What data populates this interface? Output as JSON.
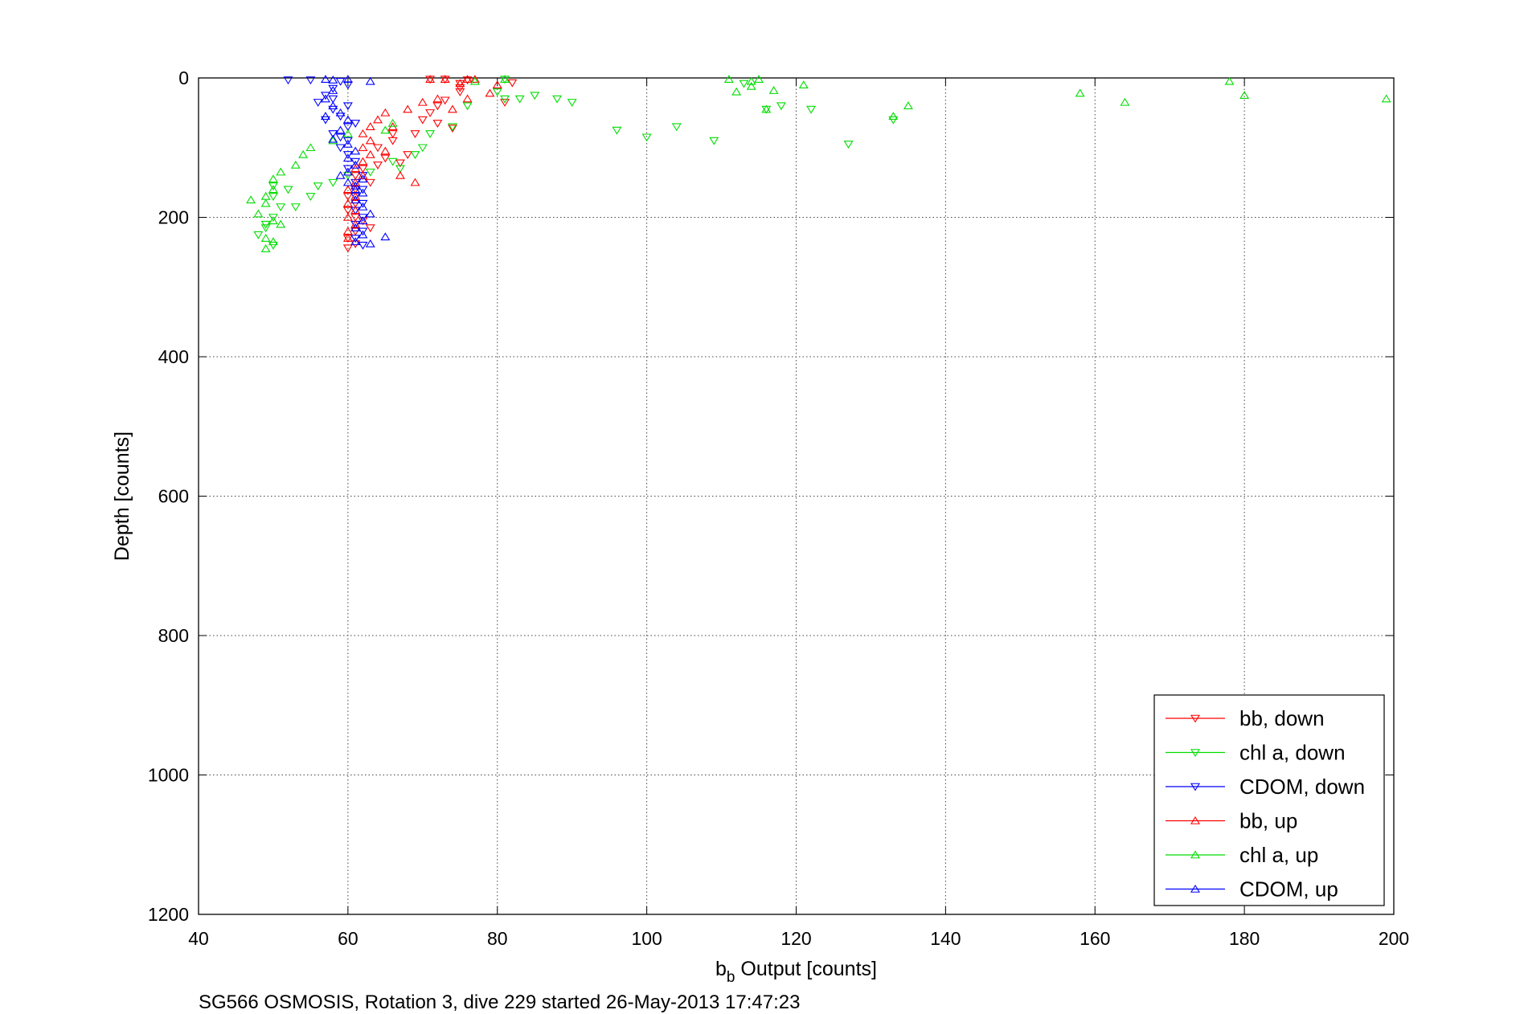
{
  "chart_data": {
    "type": "scatter",
    "xlabel": "b_b Output [counts]",
    "xlabel_main": "b",
    "xlabel_sub": "b",
    "xlabel_rest": " Output [counts]",
    "ylabel": "Depth [counts]",
    "caption": "SG566 OSMOSIS, Rotation 3, dive 229 started 26-May-2013 17:47:23",
    "xlim": [
      40,
      200
    ],
    "ylim": [
      0,
      1200
    ],
    "y_reversed": true,
    "grid": true,
    "legend_position": "bottom-right",
    "xticks": [
      40,
      60,
      80,
      100,
      120,
      140,
      160,
      180,
      200
    ],
    "yticks": [
      0,
      200,
      400,
      600,
      800,
      1000,
      1200
    ],
    "series": [
      {
        "name": "bb, down",
        "color": "#ff0000",
        "marker": "triangle-down",
        "points": [
          [
            71,
            2
          ],
          [
            73,
            2
          ],
          [
            75,
            8
          ],
          [
            75,
            14
          ],
          [
            75,
            20
          ],
          [
            76,
            3
          ],
          [
            82,
            7
          ],
          [
            81,
            35
          ],
          [
            73,
            32
          ],
          [
            72,
            40
          ],
          [
            71,
            50
          ],
          [
            70,
            60
          ],
          [
            72,
            65
          ],
          [
            74,
            72
          ],
          [
            69,
            80
          ],
          [
            66,
            80
          ],
          [
            66,
            90
          ],
          [
            64,
            100
          ],
          [
            68,
            110
          ],
          [
            65,
            115
          ],
          [
            67,
            122
          ],
          [
            64,
            125
          ],
          [
            62,
            130
          ],
          [
            61,
            140
          ],
          [
            63,
            150
          ],
          [
            61,
            160
          ],
          [
            60,
            170
          ],
          [
            61,
            180
          ],
          [
            60,
            190
          ],
          [
            61,
            200
          ],
          [
            62,
            205
          ],
          [
            63,
            215
          ],
          [
            61,
            220
          ],
          [
            60,
            230
          ],
          [
            61,
            238
          ],
          [
            60,
            244
          ]
        ]
      },
      {
        "name": "chl a, down",
        "color": "#00dd00",
        "marker": "triangle-down",
        "points": [
          [
            81,
            2
          ],
          [
            80,
            20
          ],
          [
            81,
            30
          ],
          [
            83,
            30
          ],
          [
            85,
            25
          ],
          [
            88,
            30
          ],
          [
            90,
            35
          ],
          [
            96,
            75
          ],
          [
            100,
            85
          ],
          [
            104,
            70
          ],
          [
            109,
            90
          ],
          [
            113,
            8
          ],
          [
            116,
            45
          ],
          [
            118,
            40
          ],
          [
            122,
            45
          ],
          [
            127,
            95
          ],
          [
            133,
            60
          ],
          [
            76,
            40
          ],
          [
            74,
            70
          ],
          [
            71,
            80
          ],
          [
            70,
            100
          ],
          [
            69,
            110
          ],
          [
            67,
            130
          ],
          [
            66,
            120
          ],
          [
            63,
            135
          ],
          [
            60,
            140
          ],
          [
            58,
            150
          ],
          [
            56,
            155
          ],
          [
            55,
            170
          ],
          [
            53,
            185
          ],
          [
            50,
            200
          ],
          [
            49,
            215
          ],
          [
            48,
            225
          ],
          [
            50,
            240
          ],
          [
            49,
            210
          ],
          [
            51,
            185
          ],
          [
            50,
            170
          ],
          [
            50,
            155
          ],
          [
            52,
            160
          ]
        ]
      },
      {
        "name": "CDOM, down",
        "color": "#0000ff",
        "marker": "triangle-down",
        "points": [
          [
            52,
            3
          ],
          [
            55,
            3
          ],
          [
            59,
            5
          ],
          [
            60,
            10
          ],
          [
            58,
            15
          ],
          [
            57,
            25
          ],
          [
            56,
            35
          ],
          [
            58,
            45
          ],
          [
            59,
            55
          ],
          [
            57,
            60
          ],
          [
            60,
            70
          ],
          [
            58,
            80
          ],
          [
            60,
            90
          ],
          [
            59,
            100
          ],
          [
            60,
            110
          ],
          [
            61,
            120
          ],
          [
            60,
            130
          ],
          [
            62,
            140
          ],
          [
            61,
            150
          ],
          [
            62,
            160
          ],
          [
            61,
            170
          ],
          [
            62,
            180
          ],
          [
            61,
            190
          ],
          [
            62,
            200
          ],
          [
            61,
            210
          ],
          [
            62,
            220
          ],
          [
            61,
            230
          ],
          [
            62,
            240
          ],
          [
            60,
            40
          ],
          [
            61,
            65
          ],
          [
            59,
            85
          ],
          [
            58,
            30
          ]
        ]
      },
      {
        "name": "bb, up",
        "color": "#ff0000",
        "marker": "triangle-up",
        "points": [
          [
            71,
            2
          ],
          [
            73,
            2
          ],
          [
            75,
            8
          ],
          [
            76,
            2
          ],
          [
            77,
            2
          ],
          [
            80,
            10
          ],
          [
            79,
            22
          ],
          [
            76,
            30
          ],
          [
            74,
            45
          ],
          [
            72,
            30
          ],
          [
            70,
            35
          ],
          [
            68,
            45
          ],
          [
            65,
            50
          ],
          [
            64,
            60
          ],
          [
            63,
            70
          ],
          [
            62,
            80
          ],
          [
            63,
            90
          ],
          [
            62,
            100
          ],
          [
            63,
            110
          ],
          [
            62,
            120
          ],
          [
            61,
            130
          ],
          [
            62,
            140
          ],
          [
            61,
            150
          ],
          [
            60,
            160
          ],
          [
            61,
            170
          ],
          [
            60,
            180
          ],
          [
            61,
            190
          ],
          [
            60,
            200
          ],
          [
            61,
            210
          ],
          [
            60,
            220
          ],
          [
            60,
            230
          ],
          [
            66,
            70
          ],
          [
            67,
            140
          ],
          [
            69,
            150
          ],
          [
            65,
            105
          ]
        ]
      },
      {
        "name": "chl a, up",
        "color": "#00dd00",
        "marker": "triangle-up",
        "points": [
          [
            81,
            2
          ],
          [
            111,
            2
          ],
          [
            112,
            20
          ],
          [
            114,
            5
          ],
          [
            115,
            2
          ],
          [
            114,
            12
          ],
          [
            117,
            18
          ],
          [
            121,
            10
          ],
          [
            116,
            45
          ],
          [
            133,
            55
          ],
          [
            135,
            40
          ],
          [
            158,
            22
          ],
          [
            164,
            35
          ],
          [
            178,
            5
          ],
          [
            180,
            25
          ],
          [
            199,
            30
          ],
          [
            77,
            5
          ],
          [
            66,
            65
          ],
          [
            65,
            75
          ],
          [
            60,
            80
          ],
          [
            58,
            90
          ],
          [
            55,
            100
          ],
          [
            54,
            110
          ],
          [
            53,
            125
          ],
          [
            51,
            135
          ],
          [
            50,
            145
          ],
          [
            50,
            160
          ],
          [
            49,
            170
          ],
          [
            47,
            175
          ],
          [
            49,
            180
          ],
          [
            48,
            195
          ],
          [
            50,
            205
          ],
          [
            51,
            210
          ],
          [
            49,
            230
          ],
          [
            50,
            235
          ],
          [
            49,
            245
          ]
        ]
      },
      {
        "name": "CDOM, up",
        "color": "#0000ff",
        "marker": "triangle-up",
        "points": [
          [
            57,
            2
          ],
          [
            58,
            3
          ],
          [
            60,
            2
          ],
          [
            63,
            5
          ],
          [
            58,
            18
          ],
          [
            57,
            30
          ],
          [
            58,
            40
          ],
          [
            59,
            50
          ],
          [
            57,
            55
          ],
          [
            60,
            60
          ],
          [
            59,
            75
          ],
          [
            58,
            88
          ],
          [
            60,
            95
          ],
          [
            61,
            105
          ],
          [
            60,
            115
          ],
          [
            61,
            125
          ],
          [
            60,
            135
          ],
          [
            62,
            145
          ],
          [
            61,
            155
          ],
          [
            62,
            165
          ],
          [
            61,
            175
          ],
          [
            62,
            185
          ],
          [
            63,
            195
          ],
          [
            62,
            205
          ],
          [
            61,
            215
          ],
          [
            62,
            225
          ],
          [
            61,
            235
          ],
          [
            63,
            238
          ],
          [
            65,
            228
          ],
          [
            59,
            140
          ],
          [
            60,
            150
          ],
          [
            61,
            160
          ]
        ]
      }
    ]
  }
}
